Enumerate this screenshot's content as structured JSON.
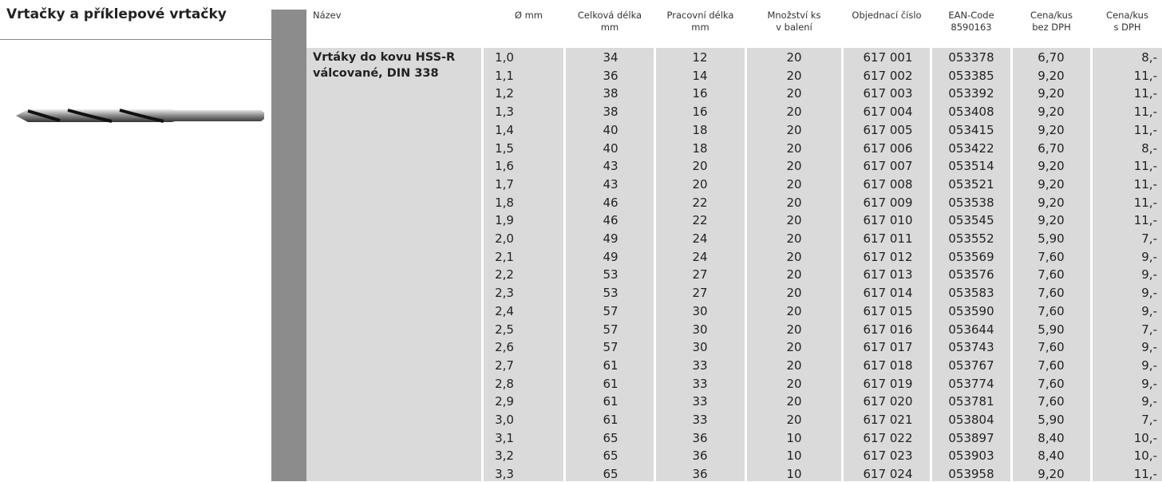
{
  "header": {
    "title": "Vrtačky a příklepové vrtačky"
  },
  "table": {
    "columns": [
      [
        "Název"
      ],
      [
        "Ø mm"
      ],
      [
        "Celková délka",
        "mm"
      ],
      [
        "Pracovní délka",
        "mm"
      ],
      [
        "Množství ks",
        "v balení"
      ],
      [
        "Objednací číslo"
      ],
      [
        "EAN-Code",
        "8590163"
      ],
      [
        "Cena/kus",
        "bez DPH"
      ],
      [
        "Cena/kus",
        "s DPH"
      ]
    ],
    "name": [
      "Vrtáky do kovu HSS-R",
      "válcované, DIN 338"
    ],
    "rows": [
      [
        "1,0",
        "34",
        "12",
        "20",
        "617 001",
        "053378",
        "6,70",
        "8,-"
      ],
      [
        "1,1",
        "36",
        "14",
        "20",
        "617 002",
        "053385",
        "9,20",
        "11,-"
      ],
      [
        "1,2",
        "38",
        "16",
        "20",
        "617 003",
        "053392",
        "9,20",
        "11,-"
      ],
      [
        "1,3",
        "38",
        "16",
        "20",
        "617 004",
        "053408",
        "9,20",
        "11,-"
      ],
      [
        "1,4",
        "40",
        "18",
        "20",
        "617 005",
        "053415",
        "9,20",
        "11,-"
      ],
      [
        "1,5",
        "40",
        "18",
        "20",
        "617 006",
        "053422",
        "6,70",
        "8,-"
      ],
      [
        "1,6",
        "43",
        "20",
        "20",
        "617 007",
        "053514",
        "9,20",
        "11,-"
      ],
      [
        "1,7",
        "43",
        "20",
        "20",
        "617 008",
        "053521",
        "9,20",
        "11,-"
      ],
      [
        "1,8",
        "46",
        "22",
        "20",
        "617 009",
        "053538",
        "9,20",
        "11,-"
      ],
      [
        "1,9",
        "46",
        "22",
        "20",
        "617 010",
        "053545",
        "9,20",
        "11,-"
      ],
      [
        "2,0",
        "49",
        "24",
        "20",
        "617 011",
        "053552",
        "5,90",
        "7,-"
      ],
      [
        "2,1",
        "49",
        "24",
        "20",
        "617 012",
        "053569",
        "7,60",
        "9,-"
      ],
      [
        "2,2",
        "53",
        "27",
        "20",
        "617 013",
        "053576",
        "7,60",
        "9,-"
      ],
      [
        "2,3",
        "53",
        "27",
        "20",
        "617 014",
        "053583",
        "7,60",
        "9,-"
      ],
      [
        "2,4",
        "57",
        "30",
        "20",
        "617 015",
        "053590",
        "7,60",
        "9,-"
      ],
      [
        "2,5",
        "57",
        "30",
        "20",
        "617 016",
        "053644",
        "5,90",
        "7,-"
      ],
      [
        "2,6",
        "57",
        "30",
        "20",
        "617 017",
        "053743",
        "7,60",
        "9,-"
      ],
      [
        "2,7",
        "61",
        "33",
        "20",
        "617 018",
        "053767",
        "7,60",
        "9,-"
      ],
      [
        "2,8",
        "61",
        "33",
        "20",
        "617 019",
        "053774",
        "7,60",
        "9,-"
      ],
      [
        "2,9",
        "61",
        "33",
        "20",
        "617 020",
        "053781",
        "7,60",
        "9,-"
      ],
      [
        "3,0",
        "61",
        "33",
        "20",
        "617 021",
        "053804",
        "5,90",
        "7,-"
      ],
      [
        "3,1",
        "65",
        "36",
        "10",
        "617 022",
        "053897",
        "8,40",
        "10,-"
      ],
      [
        "3,2",
        "65",
        "36",
        "10",
        "617 023",
        "053903",
        "8,40",
        "10,-"
      ],
      [
        "3,3",
        "65",
        "36",
        "10",
        "617 024",
        "053958",
        "9,20",
        "11,-"
      ]
    ]
  }
}
